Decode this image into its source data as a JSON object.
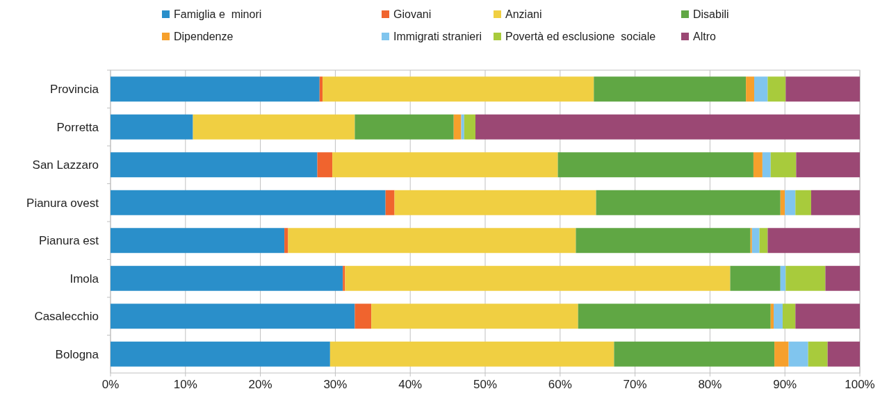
{
  "chart_data": {
    "type": "bar",
    "orientation": "horizontal",
    "stacked": true,
    "categories": [
      "Provincia",
      "Porretta",
      "San Lazzaro",
      "Pianura ovest",
      "Pianura est",
      "Imola",
      "Casalecchio",
      "Bologna"
    ],
    "series": [
      {
        "name": "Famiglia e  minori",
        "color": "#2a8fca",
        "values": [
          27.9,
          11.0,
          27.6,
          36.7,
          23.2,
          31.0,
          32.6,
          29.3
        ]
      },
      {
        "name": "Giovani",
        "color": "#f0642e",
        "values": [
          0.4,
          0,
          2.0,
          1.2,
          0.5,
          0.3,
          2.2,
          0
        ]
      },
      {
        "name": "Anziani",
        "color": "#f0cf42",
        "values": [
          36.2,
          21.6,
          30.1,
          26.9,
          38.4,
          51.4,
          27.6,
          37.9
        ]
      },
      {
        "name": "Disabili",
        "color": "#60a744",
        "values": [
          20.3,
          13.2,
          26.1,
          24.6,
          23.3,
          6.7,
          25.7,
          21.4
        ]
      },
      {
        "name": "Dipendenze",
        "color": "#f6a02c",
        "values": [
          1.1,
          1.0,
          1.2,
          0.6,
          0.2,
          0,
          0.4,
          1.9
        ]
      },
      {
        "name": "Immigrati stranieri",
        "color": "#80c5ee",
        "values": [
          1.8,
          0.4,
          1.1,
          1.4,
          1.0,
          0.7,
          1.2,
          2.6
        ]
      },
      {
        "name": "Povertà ed esclusione  sociale",
        "color": "#a8cb3c",
        "values": [
          2.4,
          1.5,
          3.4,
          2.1,
          1.1,
          5.3,
          1.7,
          2.6
        ]
      },
      {
        "name": "Altro",
        "color": "#9b4874",
        "values": [
          9.9,
          51.3,
          8.5,
          6.5,
          12.3,
          4.6,
          8.6,
          4.3
        ]
      }
    ],
    "xlim": [
      0,
      100
    ],
    "xticks": [
      {
        "value": 0,
        "label": "0%"
      },
      {
        "value": 10,
        "label": "10%"
      },
      {
        "value": 20,
        "label": "20%"
      },
      {
        "value": 30,
        "label": "30%"
      },
      {
        "value": 40,
        "label": "40%"
      },
      {
        "value": 50,
        "label": "50%"
      },
      {
        "value": 60,
        "label": "60%"
      },
      {
        "value": 70,
        "label": "70%"
      },
      {
        "value": 80,
        "label": "80%"
      },
      {
        "value": 90,
        "label": "90%"
      },
      {
        "value": 100,
        "label": "100%"
      }
    ],
    "grid": "x",
    "legend": "top"
  }
}
